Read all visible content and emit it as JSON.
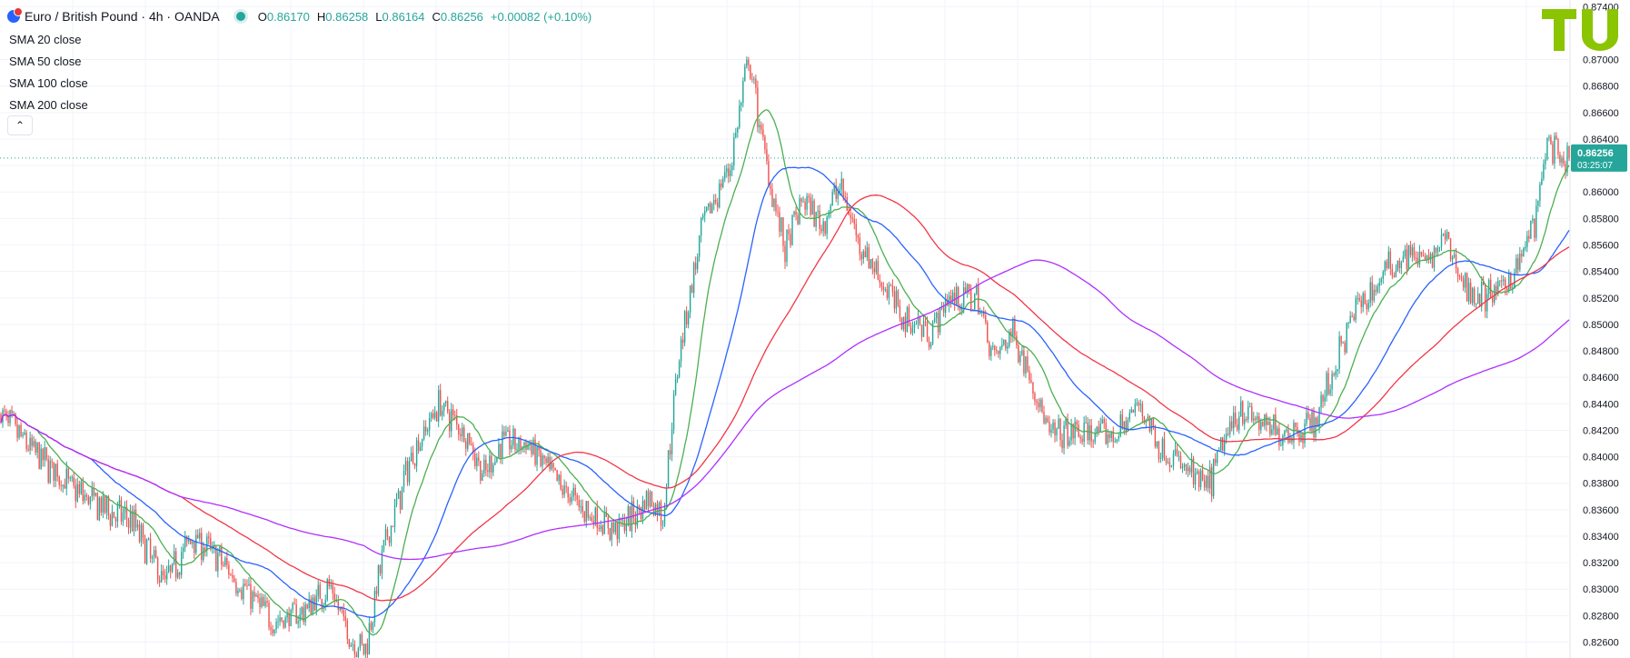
{
  "header": {
    "title": "Euro / British Pound · 4h · OANDA",
    "open_label": "O",
    "open": "0.86170",
    "high_label": "H",
    "high": "0.86258",
    "low_label": "L",
    "low": "0.86164",
    "close_label": "C",
    "close": "0.86256",
    "change": "+0.00082 (+0.10%)"
  },
  "legend": [
    "SMA 20 close",
    "SMA 50 close",
    "SMA 100 close",
    "SMA 200 close"
  ],
  "price_tag": {
    "price": "0.86256",
    "countdown": "03:25:07"
  },
  "logo": {
    "text": "TU"
  },
  "colors": {
    "up": "#26a69a",
    "down": "#ef5350",
    "sma20": "#4caf50",
    "sma50": "#2962ff",
    "sma100": "#f23645",
    "sma200": "#b02eff",
    "logo": "#8bc400",
    "grid": "#f0f3fa"
  },
  "chart_data": {
    "type": "candlestick",
    "symbol": "EURGBP",
    "interval": "4h",
    "y_axis_ticks": [
      "0.87400",
      "0.87000",
      "0.86800",
      "0.86600",
      "0.86400",
      "0.86200",
      "0.86000",
      "0.85800",
      "0.85600",
      "0.85400",
      "0.85200",
      "0.85000",
      "0.84800",
      "0.84600",
      "0.84400",
      "0.84200",
      "0.84000",
      "0.83800",
      "0.83600",
      "0.83400",
      "0.83200",
      "0.83000",
      "0.82800",
      "0.82600"
    ],
    "ylim": [
      0.8248,
      0.8745
    ],
    "last_price": 0.86256,
    "price_anchors": [
      [
        0,
        0.8432
      ],
      [
        15,
        0.8408
      ],
      [
        40,
        0.8375
      ],
      [
        60,
        0.8358
      ],
      [
        72,
        0.8352
      ],
      [
        78,
        0.8335
      ],
      [
        90,
        0.8305
      ],
      [
        105,
        0.834
      ],
      [
        118,
        0.8325
      ],
      [
        140,
        0.829
      ],
      [
        150,
        0.8275
      ],
      [
        165,
        0.8282
      ],
      [
        180,
        0.8302
      ],
      [
        192,
        0.8262
      ],
      [
        200,
        0.8255
      ],
      [
        210,
        0.833
      ],
      [
        225,
        0.84
      ],
      [
        240,
        0.844
      ],
      [
        255,
        0.8418
      ],
      [
        265,
        0.8385
      ],
      [
        275,
        0.8412
      ],
      [
        290,
        0.8408
      ],
      [
        305,
        0.838
      ],
      [
        320,
        0.836
      ],
      [
        335,
        0.8345
      ],
      [
        345,
        0.8352
      ],
      [
        355,
        0.837
      ],
      [
        363,
        0.8355
      ],
      [
        372,
        0.848
      ],
      [
        385,
        0.8575
      ],
      [
        400,
        0.862
      ],
      [
        410,
        0.87
      ],
      [
        420,
        0.862
      ],
      [
        430,
        0.8555
      ],
      [
        440,
        0.8595
      ],
      [
        450,
        0.8575
      ],
      [
        460,
        0.8605
      ],
      [
        470,
        0.8565
      ],
      [
        480,
        0.854
      ],
      [
        495,
        0.8505
      ],
      [
        510,
        0.8495
      ],
      [
        520,
        0.852
      ],
      [
        535,
        0.852
      ],
      [
        545,
        0.8475
      ],
      [
        555,
        0.8495
      ],
      [
        565,
        0.846
      ],
      [
        575,
        0.8415
      ],
      [
        595,
        0.8418
      ],
      [
        610,
        0.8415
      ],
      [
        625,
        0.844
      ],
      [
        635,
        0.8408
      ],
      [
        650,
        0.839
      ],
      [
        662,
        0.8375
      ],
      [
        670,
        0.841
      ],
      [
        680,
        0.8438
      ],
      [
        690,
        0.8425
      ],
      [
        700,
        0.8418
      ],
      [
        712,
        0.842
      ],
      [
        722,
        0.843
      ],
      [
        732,
        0.847
      ],
      [
        742,
        0.851
      ],
      [
        752,
        0.8525
      ],
      [
        762,
        0.8545
      ],
      [
        772,
        0.8555
      ],
      [
        782,
        0.8545
      ],
      [
        792,
        0.8565
      ],
      [
        802,
        0.853
      ],
      [
        812,
        0.852
      ],
      [
        822,
        0.8525
      ],
      [
        832,
        0.8545
      ],
      [
        842,
        0.858
      ],
      [
        848,
        0.864
      ],
      [
        852,
        0.863
      ],
      [
        856,
        0.8615
      ],
      [
        860,
        0.8626
      ]
    ],
    "bar_count": 861,
    "volatility": 0.0009,
    "series": [
      {
        "name": "SMA 20 close",
        "period": 20,
        "color": "#4caf50"
      },
      {
        "name": "SMA 50 close",
        "period": 50,
        "color": "#2962ff"
      },
      {
        "name": "SMA 100 close",
        "period": 100,
        "color": "#f23645"
      },
      {
        "name": "SMA 200 close",
        "period": 200,
        "color": "#b02eff"
      }
    ]
  }
}
